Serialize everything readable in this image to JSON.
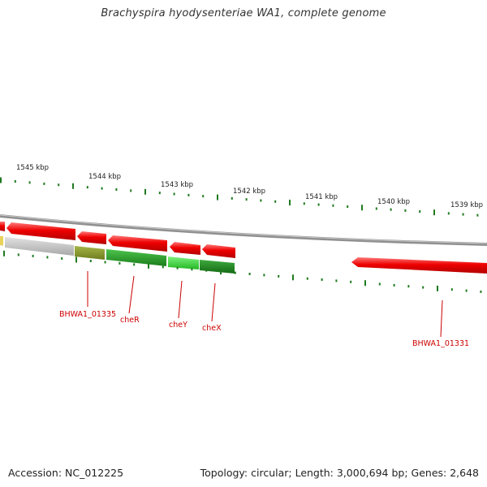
{
  "title": "Brachyspira hyodysenteriae WA1, complete genome",
  "scale_labels": [
    "1545 kbp",
    "1544 kbp",
    "1543 kbp",
    "1542 kbp",
    "1541 kbp",
    "1540 kbp",
    "1539 kbp"
  ],
  "genes": [
    {
      "label": "BHWA1_01335",
      "color": "#8a9a2c"
    },
    {
      "label": "cheR",
      "color": "#2a9a2a"
    },
    {
      "label": "cheY",
      "color": "#33cc33"
    },
    {
      "label": "cheX",
      "color": "#1f8a1f"
    },
    {
      "label": "BHWA1_01331",
      "color": "#ee0000"
    }
  ],
  "colors": {
    "backbone": "#808080",
    "forward_strand": "#ee0000",
    "reverse_strand_light": "#bbbbbb",
    "tick": "#1f7a1f",
    "label": "#cc0000"
  },
  "footer": {
    "accession": "Accession: NC_012225",
    "summary": "Topology: circular; Length: 3,000,694 bp; Genes: 2,648"
  }
}
